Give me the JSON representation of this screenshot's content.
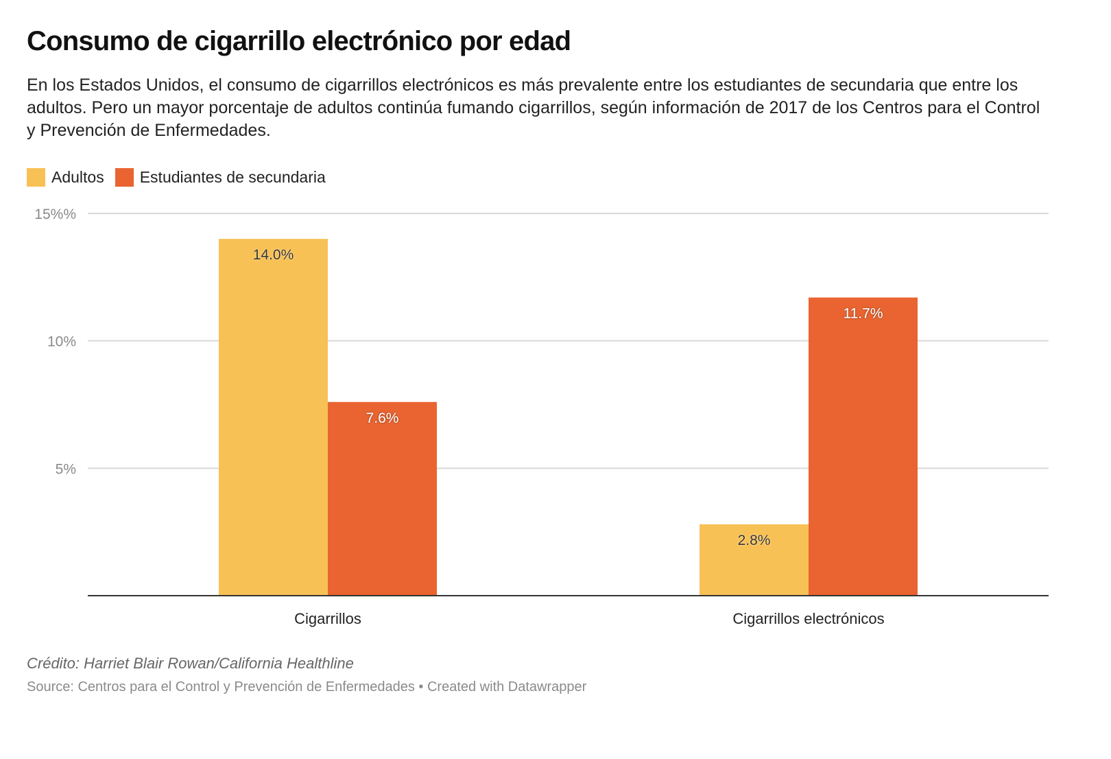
{
  "header": {
    "title": "Consumo de cigarrillo electrónico por edad",
    "subtitle": "En los Estados Unidos, el consumo de cigarrillos electrónicos es más prevalente entre los estudiantes de secundaria que entre los adultos. Pero un mayor porcentaje de adultos continúa fumando cigarrillos, según información de 2017 de los Centros para el Control y Prevención de Enfermedades."
  },
  "legend": [
    {
      "label": "Adultos",
      "color": "#f8c155"
    },
    {
      "label": "Estudiantes de secundaria",
      "color": "#e96430"
    }
  ],
  "footer": {
    "credit": "Crédito: Harriet Blair Rowan/California Healthline",
    "source": "Source: Centros para el Control y Prevención de Enfermedades • Created with Datawrapper"
  },
  "chart_data": {
    "type": "bar",
    "title": "Consumo de cigarrillo electrónico por edad",
    "xlabel": "",
    "ylabel": "",
    "categories": [
      "Cigarrillos",
      "Cigarrillos electrónicos"
    ],
    "series": [
      {
        "name": "Adultos",
        "color": "#f8c155",
        "values": [
          14.0,
          2.8
        ],
        "labels": [
          "14.0%",
          "2.8%"
        ],
        "label_color": "#333333"
      },
      {
        "name": "Estudiantes de secundaria",
        "color": "#e96430",
        "values": [
          7.6,
          11.7
        ],
        "labels": [
          "7.6%",
          "11.7%"
        ],
        "label_color": "#ffffff"
      }
    ],
    "ylim": [
      0,
      15
    ],
    "yticks": [
      {
        "value": 15,
        "label": "15%%"
      },
      {
        "value": 10,
        "label": "10%"
      },
      {
        "value": 5,
        "label": "5%"
      }
    ],
    "grid": true,
    "legend_position": "top-left"
  }
}
